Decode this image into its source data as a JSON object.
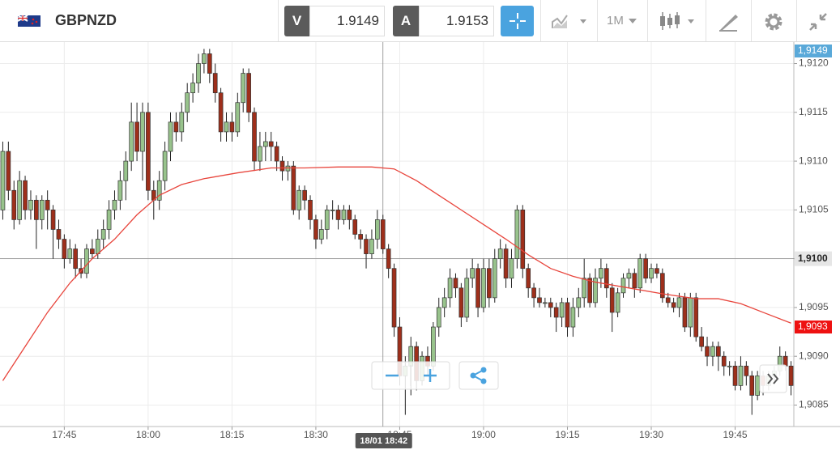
{
  "header": {
    "symbol": "GBPNZD",
    "bid_label": "V",
    "bid": "1.9149",
    "ask_label": "A",
    "ask": "1.9153",
    "timeframe": "1M"
  },
  "chart_data": {
    "type": "candlestick",
    "x": [
      1054,
      1055,
      1056,
      1057,
      1058,
      1059,
      1060,
      1061,
      1062,
      1063,
      1064,
      1065,
      1066,
      1067,
      1068,
      1069,
      1070,
      1071,
      1072,
      1073,
      1074,
      1075,
      1076,
      1077,
      1078,
      1079,
      1080,
      1081,
      1082,
      1083,
      1084,
      1085,
      1086,
      1087,
      1088,
      1089,
      1090,
      1091,
      1092,
      1093,
      1094,
      1095,
      1096,
      1097,
      1098,
      1099,
      1100,
      1101,
      1102,
      1103,
      1104,
      1105,
      1106,
      1107,
      1108,
      1109,
      1110,
      1111,
      1112,
      1113,
      1114,
      1115,
      1116,
      1117,
      1118,
      1119,
      1120,
      1121,
      1122,
      1123,
      1124,
      1125,
      1126,
      1127,
      1128,
      1129,
      1130,
      1131,
      1132,
      1133,
      1134,
      1135,
      1136,
      1137,
      1138,
      1139,
      1140,
      1141,
      1142,
      1143,
      1144,
      1145,
      1146,
      1147,
      1148,
      1149,
      1150,
      1151,
      1152,
      1153,
      1154,
      1155,
      1156,
      1157,
      1158,
      1159,
      1160,
      1161,
      1162,
      1163,
      1164,
      1165,
      1166,
      1167,
      1168,
      1169,
      1170,
      1171,
      1172,
      1173,
      1174,
      1175,
      1176,
      1177,
      1178,
      1179,
      1180,
      1181,
      1182,
      1183,
      1184,
      1185,
      1186,
      1187,
      1188,
      1189,
      1190,
      1191,
      1192,
      1193,
      1194,
      1195
    ],
    "open": [
      1.9105,
      1.9111,
      1.9107,
      1.9104,
      1.9108,
      1.9105,
      1.9106,
      1.9104,
      1.9106,
      1.9105,
      1.9103,
      1.9102,
      1.91,
      1.9101,
      1.9099,
      1.90985,
      1.9101,
      1.91005,
      1.9102,
      1.9103,
      1.9105,
      1.9106,
      1.9108,
      1.911,
      1.9114,
      1.9111,
      1.9115,
      1.9107,
      1.9106,
      1.9108,
      1.9111,
      1.9114,
      1.9113,
      1.9115,
      1.9117,
      1.9118,
      1.912,
      1.9121,
      1.9119,
      1.9117,
      1.9113,
      1.9114,
      1.9113,
      1.9116,
      1.9119,
      1.9115,
      1.911,
      1.91115,
      1.9112,
      1.91115,
      1.911,
      1.9109,
      1.91095,
      1.9105,
      1.9107,
      1.9106,
      1.9104,
      1.9102,
      1.9103,
      1.9105,
      1.9105,
      1.9104,
      1.9105,
      1.9104,
      1.91025,
      1.9102,
      1.91005,
      1.9102,
      1.9104,
      1.9101,
      1.9099,
      1.9093,
      1.9088,
      1.9089,
      1.9091,
      1.90875,
      1.909,
      1.9089,
      1.9093,
      1.9095,
      1.9096,
      1.9098,
      1.9097,
      1.9094,
      1.9098,
      1.9099,
      1.9095,
      1.9099,
      1.9096,
      1.91,
      1.9101,
      1.9098,
      1.91,
      1.9105,
      1.9099,
      1.9097,
      1.9096,
      1.90955,
      1.90955,
      1.9095,
      1.9094,
      1.90955,
      1.9093,
      1.9095,
      1.9096,
      1.9098,
      1.90955,
      1.9098,
      1.9099,
      1.9097,
      1.90945,
      1.90965,
      1.9098,
      1.90985,
      1.9097,
      1.91,
      1.9098,
      1.9099,
      1.90985,
      1.9096,
      1.90955,
      1.9095,
      1.9096,
      1.9093,
      1.9096,
      1.9092,
      1.9091,
      1.909,
      1.9091,
      1.909,
      1.9089,
      1.9089,
      1.9087,
      1.9089,
      1.9088,
      1.9086,
      1.9088,
      1.9087,
      1.9088,
      1.90885,
      1.909,
      1.9089
    ],
    "high": [
      1.9112,
      1.9112,
      1.9108,
      1.9109,
      1.91085,
      1.9107,
      1.91065,
      1.91065,
      1.9107,
      1.91055,
      1.9104,
      1.91025,
      1.9102,
      1.91015,
      1.91,
      1.91015,
      1.9102,
      1.9103,
      1.9104,
      1.9106,
      1.9107,
      1.9109,
      1.9111,
      1.9116,
      1.9116,
      1.9116,
      1.9116,
      1.9108,
      1.9109,
      1.9112,
      1.9115,
      1.9115,
      1.9116,
      1.9118,
      1.9119,
      1.9121,
      1.91215,
      1.91215,
      1.912,
      1.91175,
      1.9115,
      1.9115,
      1.9117,
      1.91195,
      1.91195,
      1.91155,
      1.9113,
      1.9113,
      1.9113,
      1.9112,
      1.91105,
      1.911,
      1.911,
      1.91075,
      1.91075,
      1.91065,
      1.91045,
      1.9104,
      1.91055,
      1.9106,
      1.91055,
      1.91055,
      1.91055,
      1.91045,
      1.9103,
      1.91025,
      1.9103,
      1.9105,
      1.91045,
      1.91015,
      1.90995,
      1.9094,
      1.909,
      1.9092,
      1.90915,
      1.90905,
      1.9091,
      1.90935,
      1.9096,
      1.9097,
      1.9099,
      1.90985,
      1.90975,
      1.9099,
      1.91,
      1.90995,
      1.91,
      1.91,
      1.9101,
      1.9102,
      1.91015,
      1.9101,
      1.91055,
      1.91055,
      1.90995,
      1.90975,
      1.9097,
      1.9096,
      1.9096,
      1.90955,
      1.9096,
      1.9096,
      1.9096,
      1.9097,
      1.91,
      1.90985,
      1.9099,
      1.91,
      1.90995,
      1.90975,
      1.9097,
      1.90985,
      1.9099,
      1.9099,
      1.91005,
      1.91005,
      1.90995,
      1.90995,
      1.9099,
      1.90965,
      1.9096,
      1.90965,
      1.90965,
      1.90965,
      1.90965,
      1.9093,
      1.9092,
      1.90915,
      1.90915,
      1.90905,
      1.90895,
      1.90895,
      1.909,
      1.90895,
      1.90885,
      1.90885,
      1.90885,
      1.90885,
      1.9089,
      1.9091,
      1.90905,
      1.90895
    ],
    "low": [
      1.9104,
      1.9106,
      1.9103,
      1.91035,
      1.9104,
      1.9104,
      1.9101,
      1.9103,
      1.9103,
      1.91,
      1.9101,
      1.9099,
      1.90995,
      1.9098,
      1.9098,
      1.9098,
      1.91,
      1.91,
      1.9101,
      1.9102,
      1.9104,
      1.9105,
      1.9106,
      1.9109,
      1.911,
      1.9108,
      1.9106,
      1.9104,
      1.9105,
      1.9107,
      1.911,
      1.9112,
      1.9112,
      1.9114,
      1.9116,
      1.9117,
      1.9119,
      1.9118,
      1.9116,
      1.9112,
      1.9112,
      1.9112,
      1.91125,
      1.9115,
      1.9114,
      1.9109,
      1.9109,
      1.911,
      1.911,
      1.9109,
      1.9108,
      1.9108,
      1.91045,
      1.9104,
      1.9105,
      1.9103,
      1.9101,
      1.91015,
      1.9102,
      1.9104,
      1.9103,
      1.91035,
      1.9103,
      1.9102,
      1.9101,
      1.9099,
      1.91,
      1.9101,
      1.91005,
      1.9098,
      1.9092,
      1.9087,
      1.9084,
      1.9086,
      1.90865,
      1.9087,
      1.9088,
      1.90885,
      1.9092,
      1.9094,
      1.9095,
      1.9096,
      1.9093,
      1.90935,
      1.9097,
      1.9094,
      1.90945,
      1.9095,
      1.90955,
      1.9099,
      1.9097,
      1.9097,
      1.9099,
      1.9098,
      1.9096,
      1.9095,
      1.9095,
      1.9095,
      1.9094,
      1.90925,
      1.9093,
      1.9092,
      1.9092,
      1.9094,
      1.9095,
      1.9095,
      1.9095,
      1.9097,
      1.9096,
      1.90925,
      1.9094,
      1.9096,
      1.9097,
      1.9096,
      1.90965,
      1.90975,
      1.90975,
      1.9098,
      1.90955,
      1.9095,
      1.90945,
      1.9094,
      1.90925,
      1.9092,
      1.90915,
      1.90905,
      1.9089,
      1.9089,
      1.90885,
      1.9088,
      1.9088,
      1.90865,
      1.90865,
      1.9087,
      1.9084,
      1.90855,
      1.9086,
      1.90865,
      1.90875,
      1.9088,
      1.90885,
      1.9086
    ],
    "close": [
      1.9111,
      1.9107,
      1.9104,
      1.9108,
      1.9105,
      1.9106,
      1.9104,
      1.9106,
      1.9105,
      1.9103,
      1.9102,
      1.91,
      1.9101,
      1.9099,
      1.90985,
      1.9101,
      1.91005,
      1.9102,
      1.9103,
      1.9105,
      1.9106,
      1.9108,
      1.911,
      1.9114,
      1.9111,
      1.9115,
      1.9107,
      1.9106,
      1.9108,
      1.9111,
      1.9114,
      1.9113,
      1.9115,
      1.9117,
      1.9118,
      1.912,
      1.9121,
      1.9119,
      1.9117,
      1.9113,
      1.9114,
      1.9113,
      1.9116,
      1.9119,
      1.9115,
      1.911,
      1.91115,
      1.9112,
      1.91115,
      1.911,
      1.9109,
      1.91095,
      1.9105,
      1.9107,
      1.9106,
      1.9104,
      1.9102,
      1.9103,
      1.9105,
      1.9105,
      1.9104,
      1.9105,
      1.9104,
      1.91025,
      1.9102,
      1.91005,
      1.9102,
      1.9104,
      1.9101,
      1.9099,
      1.9093,
      1.9088,
      1.9089,
      1.9091,
      1.90875,
      1.909,
      1.9089,
      1.9093,
      1.9095,
      1.9096,
      1.9098,
      1.9097,
      1.9094,
      1.9098,
      1.9099,
      1.9095,
      1.9099,
      1.9096,
      1.91,
      1.9101,
      1.9098,
      1.91,
      1.9105,
      1.9099,
      1.9097,
      1.9096,
      1.90955,
      1.90955,
      1.9095,
      1.9094,
      1.90955,
      1.9093,
      1.9095,
      1.9096,
      1.9098,
      1.90955,
      1.9098,
      1.9099,
      1.9097,
      1.90945,
      1.90965,
      1.9098,
      1.90985,
      1.9097,
      1.91,
      1.9098,
      1.9099,
      1.90985,
      1.9096,
      1.90955,
      1.9095,
      1.9096,
      1.9093,
      1.9096,
      1.9092,
      1.9091,
      1.909,
      1.9091,
      1.909,
      1.9089,
      1.9089,
      1.9087,
      1.9089,
      1.9088,
      1.9086,
      1.9088,
      1.9087,
      1.9088,
      1.90885,
      1.909,
      1.9089,
      1.9087
    ],
    "up_color": "#98c38c",
    "down_color": "#9e2f1b",
    "ma": {
      "color": "#e8453c",
      "x": [
        1054,
        1058,
        1062,
        1066,
        1070,
        1074,
        1078,
        1082,
        1086,
        1090,
        1096,
        1102,
        1108,
        1114,
        1120,
        1124,
        1128,
        1132,
        1136,
        1140,
        1144,
        1148,
        1152,
        1156,
        1160,
        1166,
        1172,
        1178,
        1182,
        1186,
        1190,
        1195
      ],
      "values": [
        1.90875,
        1.9091,
        1.90945,
        1.90975,
        1.91,
        1.9102,
        1.91045,
        1.91065,
        1.91076,
        1.91082,
        1.91088,
        1.91093,
        1.91093,
        1.91094,
        1.91094,
        1.91092,
        1.9108,
        1.91065,
        1.9105,
        1.91035,
        1.9102,
        1.91004,
        1.9099,
        1.90982,
        1.90976,
        1.9097,
        1.90964,
        1.90959,
        1.90959,
        1.90954,
        1.90945,
        1.90934
      ]
    },
    "xlim": [
      1053.5,
      1195.5
    ],
    "xticks": [
      {
        "value": 1065,
        "label": "17:45"
      },
      {
        "value": 1080,
        "label": "18:00"
      },
      {
        "value": 1095,
        "label": "18:15"
      },
      {
        "value": 1110,
        "label": "18:30"
      },
      {
        "value": 1125,
        "label": "18:45"
      },
      {
        "value": 1140,
        "label": "19:00"
      },
      {
        "value": 1155,
        "label": "19:15"
      },
      {
        "value": 1170,
        "label": "19:30"
      },
      {
        "value": 1185,
        "label": "19:45"
      }
    ],
    "ylim": [
      1.90828,
      1.91222
    ],
    "yticks": [
      {
        "value": 1.9085,
        "label": "1,9085"
      },
      {
        "value": 1.909,
        "label": "1,9090"
      },
      {
        "value": 1.9095,
        "label": "1,9095"
      },
      {
        "value": 1.91,
        "label": "1,9100"
      },
      {
        "value": 1.9105,
        "label": "1,9105"
      },
      {
        "value": 1.911,
        "label": "1,9110"
      },
      {
        "value": 1.9115,
        "label": "1,9115"
      },
      {
        "value": 1.912,
        "label": "1,9120"
      }
    ],
    "grid": true,
    "price_tags": [
      {
        "value": 1.9149,
        "label": "1,9149",
        "color": "#5aa9d9"
      },
      {
        "value": 1.9093,
        "label": "1,9093",
        "color": "#ee1111"
      }
    ],
    "crosshair": {
      "x": 1122,
      "x_label": "18/01 18:42",
      "y": 1.91,
      "y_label": "1,9100"
    }
  }
}
